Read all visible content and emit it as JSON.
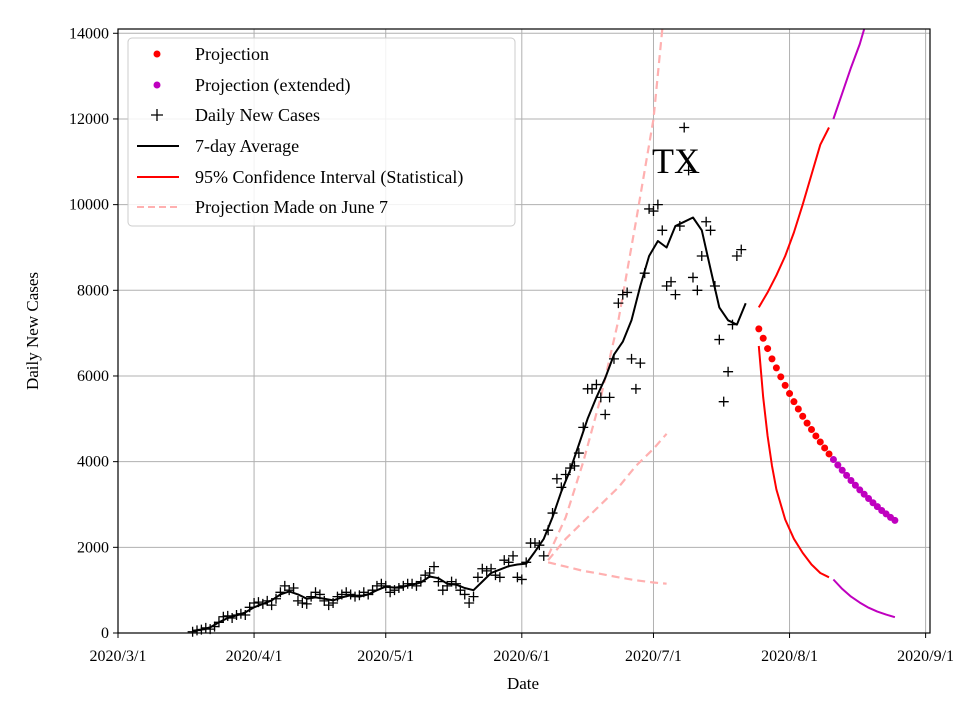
{
  "chart_data": {
    "type": "line",
    "title": "",
    "annotation": "TX",
    "xlabel": "Date",
    "ylabel": "Daily New Cases",
    "xlim": [
      0,
      185
    ],
    "ylim": [
      0,
      14100
    ],
    "grid": true,
    "x_ticks": [
      {
        "day": 0,
        "label": "2020/3/1"
      },
      {
        "day": 31,
        "label": "2020/4/1"
      },
      {
        "day": 61,
        "label": "2020/5/1"
      },
      {
        "day": 92,
        "label": "2020/6/1"
      },
      {
        "day": 122,
        "label": "2020/7/1"
      },
      {
        "day": 153,
        "label": "2020/8/1"
      },
      {
        "day": 184,
        "label": "2020/9/1"
      }
    ],
    "y_ticks": [
      0,
      2000,
      4000,
      6000,
      8000,
      10000,
      12000,
      14000
    ],
    "legend": {
      "position": "top-left",
      "entries": [
        {
          "key": "projection",
          "label": "Projection",
          "marker": "dot",
          "color": "#ff0000"
        },
        {
          "key": "projection_ext",
          "label": "Projection (extended)",
          "marker": "dot",
          "color": "#bf00bf"
        },
        {
          "key": "daily",
          "label": "Daily New Cases",
          "marker": "plus",
          "color": "#000000"
        },
        {
          "key": "avg",
          "label": "7-day Average",
          "marker": "line",
          "color": "#000000"
        },
        {
          "key": "ci",
          "label": "95% Confidence Interval (Statistical)",
          "marker": "line",
          "color": "#ff0000"
        },
        {
          "key": "june7",
          "label": "Projection Made on June 7",
          "marker": "dashed",
          "color": "#ffb0b0"
        }
      ]
    },
    "series": [
      {
        "name": "Daily New Cases",
        "style": "plus",
        "color": "#000000",
        "points": [
          [
            17,
            30
          ],
          [
            18,
            60
          ],
          [
            19,
            80
          ],
          [
            20,
            120
          ],
          [
            21,
            90
          ],
          [
            22,
            150
          ],
          [
            23,
            250
          ],
          [
            24,
            380
          ],
          [
            25,
            400
          ],
          [
            26,
            350
          ],
          [
            27,
            420
          ],
          [
            28,
            450
          ],
          [
            29,
            420
          ],
          [
            30,
            600
          ],
          [
            31,
            700
          ],
          [
            32,
            720
          ],
          [
            33,
            680
          ],
          [
            34,
            750
          ],
          [
            35,
            650
          ],
          [
            36,
            800
          ],
          [
            37,
            950
          ],
          [
            38,
            1100
          ],
          [
            39,
            1000
          ],
          [
            40,
            1050
          ],
          [
            41,
            750
          ],
          [
            42,
            700
          ],
          [
            43,
            680
          ],
          [
            44,
            850
          ],
          [
            45,
            950
          ],
          [
            46,
            900
          ],
          [
            47,
            750
          ],
          [
            48,
            650
          ],
          [
            49,
            700
          ],
          [
            50,
            850
          ],
          [
            51,
            900
          ],
          [
            52,
            950
          ],
          [
            53,
            900
          ],
          [
            54,
            850
          ],
          [
            55,
            880
          ],
          [
            56,
            950
          ],
          [
            57,
            900
          ],
          [
            58,
            1000
          ],
          [
            59,
            1100
          ],
          [
            60,
            1150
          ],
          [
            61,
            1100
          ],
          [
            62,
            950
          ],
          [
            63,
            1000
          ],
          [
            64,
            1050
          ],
          [
            65,
            1100
          ],
          [
            66,
            1150
          ],
          [
            67,
            1150
          ],
          [
            68,
            1100
          ],
          [
            69,
            1200
          ],
          [
            70,
            1350
          ],
          [
            71,
            1400
          ],
          [
            72,
            1550
          ],
          [
            73,
            1200
          ],
          [
            74,
            1000
          ],
          [
            75,
            1100
          ],
          [
            76,
            1200
          ],
          [
            77,
            1150
          ],
          [
            78,
            1000
          ],
          [
            79,
            900
          ],
          [
            80,
            700
          ],
          [
            81,
            850
          ],
          [
            82,
            1300
          ],
          [
            83,
            1500
          ],
          [
            84,
            1450
          ],
          [
            85,
            1500
          ],
          [
            86,
            1350
          ],
          [
            87,
            1300
          ],
          [
            88,
            1700
          ],
          [
            89,
            1650
          ],
          [
            90,
            1800
          ],
          [
            91,
            1300
          ],
          [
            92,
            1250
          ],
          [
            93,
            1650
          ],
          [
            94,
            2100
          ],
          [
            95,
            2100
          ],
          [
            96,
            2050
          ],
          [
            97,
            1800
          ],
          [
            98,
            2400
          ],
          [
            99,
            2800
          ],
          [
            100,
            3600
          ],
          [
            101,
            3400
          ],
          [
            102,
            3700
          ],
          [
            103,
            3850
          ],
          [
            104,
            3900
          ],
          [
            105,
            4200
          ],
          [
            106,
            4800
          ],
          [
            107,
            5700
          ],
          [
            108,
            5700
          ],
          [
            109,
            5800
          ],
          [
            110,
            5500
          ],
          [
            111,
            5100
          ],
          [
            112,
            5500
          ],
          [
            113,
            6400
          ],
          [
            114,
            7700
          ],
          [
            115,
            7900
          ],
          [
            116,
            7950
          ],
          [
            117,
            6400
          ],
          [
            118,
            5700
          ],
          [
            119,
            6300
          ],
          [
            120,
            8400
          ],
          [
            121,
            9900
          ],
          [
            122,
            9850
          ],
          [
            123,
            10000
          ],
          [
            124,
            9400
          ],
          [
            125,
            8100
          ],
          [
            126,
            8200
          ],
          [
            127,
            7900
          ],
          [
            128,
            9500
          ],
          [
            129,
            11800
          ],
          [
            130,
            10800
          ],
          [
            131,
            8300
          ],
          [
            132,
            8000
          ],
          [
            133,
            8800
          ],
          [
            134,
            9600
          ],
          [
            135,
            9400
          ],
          [
            136,
            8100
          ],
          [
            137,
            6850
          ],
          [
            138,
            5400
          ],
          [
            139,
            6100
          ],
          [
            140,
            7200
          ],
          [
            141,
            8800
          ],
          [
            142,
            8950
          ]
        ]
      },
      {
        "name": "7-day Average",
        "style": "line",
        "color": "#000000",
        "points": [
          [
            17,
            50
          ],
          [
            19,
            80
          ],
          [
            21,
            130
          ],
          [
            23,
            250
          ],
          [
            25,
            350
          ],
          [
            27,
            410
          ],
          [
            29,
            480
          ],
          [
            31,
            600
          ],
          [
            33,
            680
          ],
          [
            35,
            760
          ],
          [
            37,
            900
          ],
          [
            39,
            970
          ],
          [
            41,
            900
          ],
          [
            43,
            800
          ],
          [
            45,
            830
          ],
          [
            47,
            800
          ],
          [
            49,
            760
          ],
          [
            51,
            830
          ],
          [
            53,
            880
          ],
          [
            55,
            850
          ],
          [
            57,
            900
          ],
          [
            59,
            1000
          ],
          [
            61,
            1080
          ],
          [
            63,
            1060
          ],
          [
            65,
            1080
          ],
          [
            67,
            1130
          ],
          [
            69,
            1180
          ],
          [
            71,
            1320
          ],
          [
            73,
            1280
          ],
          [
            75,
            1150
          ],
          [
            77,
            1130
          ],
          [
            79,
            1050
          ],
          [
            81,
            1000
          ],
          [
            83,
            1200
          ],
          [
            85,
            1400
          ],
          [
            87,
            1480
          ],
          [
            89,
            1560
          ],
          [
            91,
            1600
          ],
          [
            93,
            1620
          ],
          [
            95,
            1900
          ],
          [
            97,
            2200
          ],
          [
            99,
            2700
          ],
          [
            101,
            3300
          ],
          [
            103,
            3800
          ],
          [
            105,
            4400
          ],
          [
            107,
            5000
          ],
          [
            109,
            5500
          ],
          [
            111,
            5950
          ],
          [
            113,
            6500
          ],
          [
            115,
            6800
          ],
          [
            117,
            7300
          ],
          [
            119,
            8100
          ],
          [
            121,
            8800
          ],
          [
            123,
            9150
          ],
          [
            125,
            9000
          ],
          [
            127,
            9500
          ],
          [
            129,
            9600
          ],
          [
            131,
            9700
          ],
          [
            133,
            9400
          ],
          [
            135,
            8500
          ],
          [
            137,
            7600
          ],
          [
            139,
            7300
          ],
          [
            141,
            7200
          ],
          [
            143,
            7700
          ]
        ]
      },
      {
        "name": "Projection",
        "style": "dot",
        "color": "#ff0000",
        "points": [
          [
            146,
            7100
          ],
          [
            147,
            6880
          ],
          [
            148,
            6640
          ],
          [
            149,
            6400
          ],
          [
            150,
            6190
          ],
          [
            151,
            5980
          ],
          [
            152,
            5780
          ],
          [
            153,
            5590
          ],
          [
            154,
            5400
          ],
          [
            155,
            5230
          ],
          [
            156,
            5060
          ],
          [
            157,
            4900
          ],
          [
            158,
            4750
          ],
          [
            159,
            4600
          ],
          [
            160,
            4460
          ],
          [
            161,
            4320
          ],
          [
            162,
            4180
          ]
        ]
      },
      {
        "name": "Projection (extended)",
        "style": "dot",
        "color": "#bf00bf",
        "points": [
          [
            163,
            4050
          ],
          [
            164,
            3920
          ],
          [
            165,
            3800
          ],
          [
            166,
            3680
          ],
          [
            167,
            3560
          ],
          [
            168,
            3450
          ],
          [
            169,
            3340
          ],
          [
            170,
            3240
          ],
          [
            171,
            3140
          ],
          [
            172,
            3040
          ],
          [
            173,
            2950
          ],
          [
            174,
            2860
          ],
          [
            175,
            2780
          ],
          [
            176,
            2700
          ],
          [
            177,
            2630
          ]
        ]
      },
      {
        "name": "95% CI upper",
        "style": "line",
        "color": "#ff0000",
        "points": [
          [
            146,
            7600
          ],
          [
            148,
            7950
          ],
          [
            150,
            8350
          ],
          [
            152,
            8800
          ],
          [
            154,
            9350
          ],
          [
            156,
            10000
          ],
          [
            158,
            10700
          ],
          [
            160,
            11400
          ],
          [
            162,
            11800
          ]
        ]
      },
      {
        "name": "95% CI upper (extended)",
        "style": "line",
        "color": "#bf00bf",
        "points": [
          [
            163,
            12000
          ],
          [
            165,
            12600
          ],
          [
            167,
            13200
          ],
          [
            169,
            13750
          ],
          [
            170,
            14100
          ]
        ]
      },
      {
        "name": "95% CI lower",
        "style": "line",
        "color": "#ff0000",
        "points": [
          [
            146,
            6700
          ],
          [
            147,
            5500
          ],
          [
            148,
            4600
          ],
          [
            149,
            3900
          ],
          [
            150,
            3350
          ],
          [
            152,
            2650
          ],
          [
            154,
            2200
          ],
          [
            156,
            1870
          ],
          [
            158,
            1600
          ],
          [
            160,
            1400
          ],
          [
            162,
            1300
          ]
        ]
      },
      {
        "name": "95% CI lower (extended)",
        "style": "line",
        "color": "#bf00bf",
        "points": [
          [
            163,
            1250
          ],
          [
            165,
            1030
          ],
          [
            167,
            850
          ],
          [
            169,
            710
          ],
          [
            171,
            590
          ],
          [
            173,
            500
          ],
          [
            175,
            430
          ],
          [
            177,
            370
          ]
        ]
      },
      {
        "name": "Projection Made on June 7 (upper)",
        "style": "dashed",
        "color": "#ffb0b0",
        "points": [
          [
            98,
            1800
          ],
          [
            102,
            2700
          ],
          [
            106,
            4000
          ],
          [
            110,
            5500
          ],
          [
            114,
            7300
          ],
          [
            118,
            9600
          ],
          [
            122,
            12000
          ],
          [
            124,
            14100
          ]
        ]
      },
      {
        "name": "Projection Made on June 7 (middle)",
        "style": "dashed",
        "color": "#ffb0b0",
        "points": [
          [
            98,
            1700
          ],
          [
            102,
            2200
          ],
          [
            106,
            2600
          ],
          [
            110,
            3000
          ],
          [
            114,
            3400
          ],
          [
            118,
            3900
          ],
          [
            122,
            4300
          ],
          [
            125,
            4650
          ]
        ]
      },
      {
        "name": "Projection Made on June 7 (lower)",
        "style": "dashed",
        "color": "#ffb0b0",
        "points": [
          [
            98,
            1650
          ],
          [
            102,
            1550
          ],
          [
            106,
            1450
          ],
          [
            110,
            1380
          ],
          [
            114,
            1300
          ],
          [
            118,
            1230
          ],
          [
            122,
            1180
          ],
          [
            125,
            1150
          ]
        ]
      }
    ]
  }
}
